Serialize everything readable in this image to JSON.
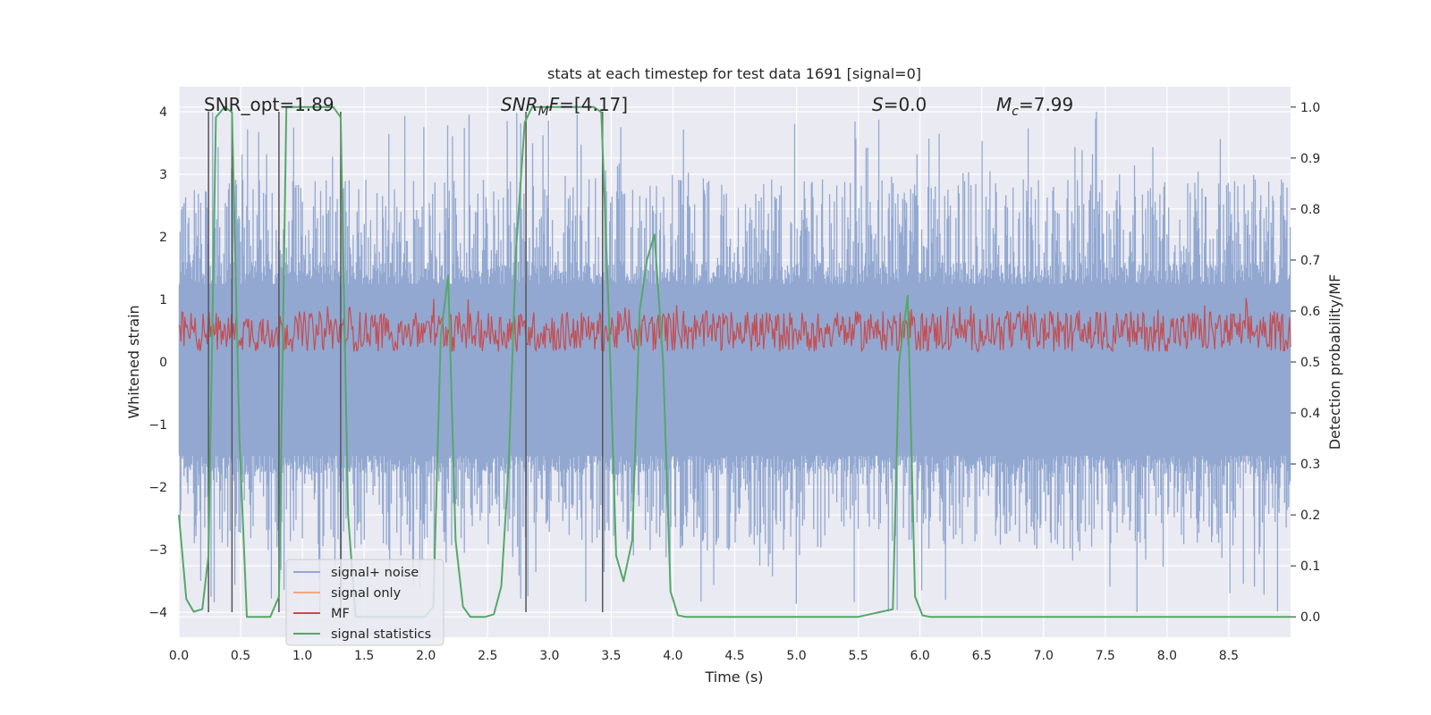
{
  "chart_data": {
    "type": "line",
    "title": "stats at each timestep for test data 1691 [signal=0]",
    "xlabel": "Time (s)",
    "ylabel_left": "Whitened strain",
    "ylabel_right": "Detection probability/MF",
    "xlim": [
      0.0,
      9.0
    ],
    "ylim_left": [
      -4.4,
      4.4
    ],
    "ylim_right": [
      -0.04,
      1.04
    ],
    "xticks": [
      "0.0",
      "0.5",
      "1.0",
      "1.5",
      "2.0",
      "2.5",
      "3.0",
      "3.5",
      "4.0",
      "4.5",
      "5.0",
      "5.5",
      "6.0",
      "6.5",
      "7.0",
      "7.5",
      "8.0",
      "8.5"
    ],
    "yticks_left": [
      "4",
      "3",
      "2",
      "1",
      "0",
      "−1",
      "−2",
      "−3",
      "−4"
    ],
    "yticks_right": [
      "1.0",
      "0.9",
      "0.8",
      "0.7",
      "0.6",
      "0.5",
      "0.4",
      "0.3",
      "0.2",
      "0.1",
      "0.0"
    ],
    "grid": true,
    "legend_position": "bottom-left",
    "annotations": {
      "snr_opt": "SNR_opt=1.89",
      "snr_mf_prefix": "SNR",
      "snr_mf_sub": "M",
      "snr_mf_mid": "F",
      "snr_mf_value": "=[4.17]",
      "s_symbol": "S",
      "s_value": "=0.0",
      "mc_symbol": "M",
      "mc_sub": "c",
      "mc_value": "=7.99"
    },
    "series": [
      {
        "name": "signal+ noise",
        "color": "#92a8d1",
        "amplitude_band": [
          -1.8,
          1.6
        ],
        "peak_range": [
          -4.0,
          4.0
        ]
      },
      {
        "name": "signal only",
        "color": "#f0a87e",
        "values": []
      },
      {
        "name": "MF",
        "color": "#c44e52",
        "band_right_axis": [
          0.52,
          0.6
        ]
      },
      {
        "name": "signal statistics",
        "color": "#55a868",
        "points": [
          [
            0.0,
            0.2
          ],
          [
            0.06,
            0.035
          ],
          [
            0.12,
            0.01
          ],
          [
            0.19,
            0.015
          ],
          [
            0.24,
            0.12
          ],
          [
            0.3,
            0.98
          ],
          [
            0.37,
            1.0
          ],
          [
            0.43,
            0.99
          ],
          [
            0.49,
            0.35
          ],
          [
            0.55,
            0.0
          ],
          [
            0.62,
            0.0
          ],
          [
            0.68,
            0.0
          ],
          [
            0.74,
            0.0
          ],
          [
            0.81,
            0.04
          ],
          [
            0.87,
            1.0
          ],
          [
            0.93,
            1.0
          ],
          [
            1.0,
            1.0
          ],
          [
            1.06,
            1.0
          ],
          [
            1.12,
            1.0
          ],
          [
            1.18,
            1.0
          ],
          [
            1.25,
            1.0
          ],
          [
            1.31,
            0.98
          ],
          [
            1.37,
            0.2
          ],
          [
            1.43,
            0.0
          ],
          [
            1.5,
            0.0
          ],
          [
            1.56,
            0.0
          ],
          [
            1.62,
            0.0
          ],
          [
            1.68,
            0.0
          ],
          [
            1.74,
            0.0
          ],
          [
            1.8,
            0.0
          ],
          [
            1.87,
            0.0
          ],
          [
            1.93,
            0.0
          ],
          [
            1.99,
            0.0
          ],
          [
            2.06,
            0.02
          ],
          [
            2.12,
            0.55
          ],
          [
            2.18,
            0.67
          ],
          [
            2.24,
            0.15
          ],
          [
            2.3,
            0.02
          ],
          [
            2.36,
            0.0
          ],
          [
            2.42,
            0.0
          ],
          [
            2.48,
            0.0
          ],
          [
            2.55,
            0.005
          ],
          [
            2.61,
            0.06
          ],
          [
            2.67,
            0.3
          ],
          [
            2.73,
            0.72
          ],
          [
            2.8,
            0.97
          ],
          [
            2.86,
            1.0
          ],
          [
            2.92,
            1.0
          ],
          [
            2.98,
            1.0
          ],
          [
            3.05,
            1.0
          ],
          [
            3.11,
            1.0
          ],
          [
            3.17,
            1.0
          ],
          [
            3.23,
            1.0
          ],
          [
            3.3,
            1.0
          ],
          [
            3.36,
            1.0
          ],
          [
            3.42,
            0.99
          ],
          [
            3.48,
            0.6
          ],
          [
            3.54,
            0.12
          ],
          [
            3.6,
            0.07
          ],
          [
            3.67,
            0.15
          ],
          [
            3.73,
            0.6
          ],
          [
            3.79,
            0.7
          ],
          [
            3.85,
            0.75
          ],
          [
            3.92,
            0.5
          ],
          [
            3.98,
            0.05
          ],
          [
            4.04,
            0.003
          ],
          [
            4.1,
            0.0
          ],
          [
            4.5,
            0.0
          ],
          [
            5.0,
            0.0
          ],
          [
            5.5,
            0.0
          ],
          [
            5.78,
            0.015
          ],
          [
            5.83,
            0.5
          ],
          [
            5.9,
            0.63
          ],
          [
            5.96,
            0.04
          ],
          [
            6.02,
            0.003
          ],
          [
            6.08,
            0.0
          ],
          [
            6.5,
            0.0
          ],
          [
            7.0,
            0.0
          ],
          [
            7.5,
            0.0
          ],
          [
            8.0,
            0.0
          ],
          [
            8.5,
            0.0
          ],
          [
            9.0,
            0.0
          ]
        ]
      }
    ],
    "vertical_markers_x": [
      0.24,
      0.43,
      0.81,
      1.31,
      2.81,
      3.43
    ],
    "marker_color": "#555555"
  }
}
